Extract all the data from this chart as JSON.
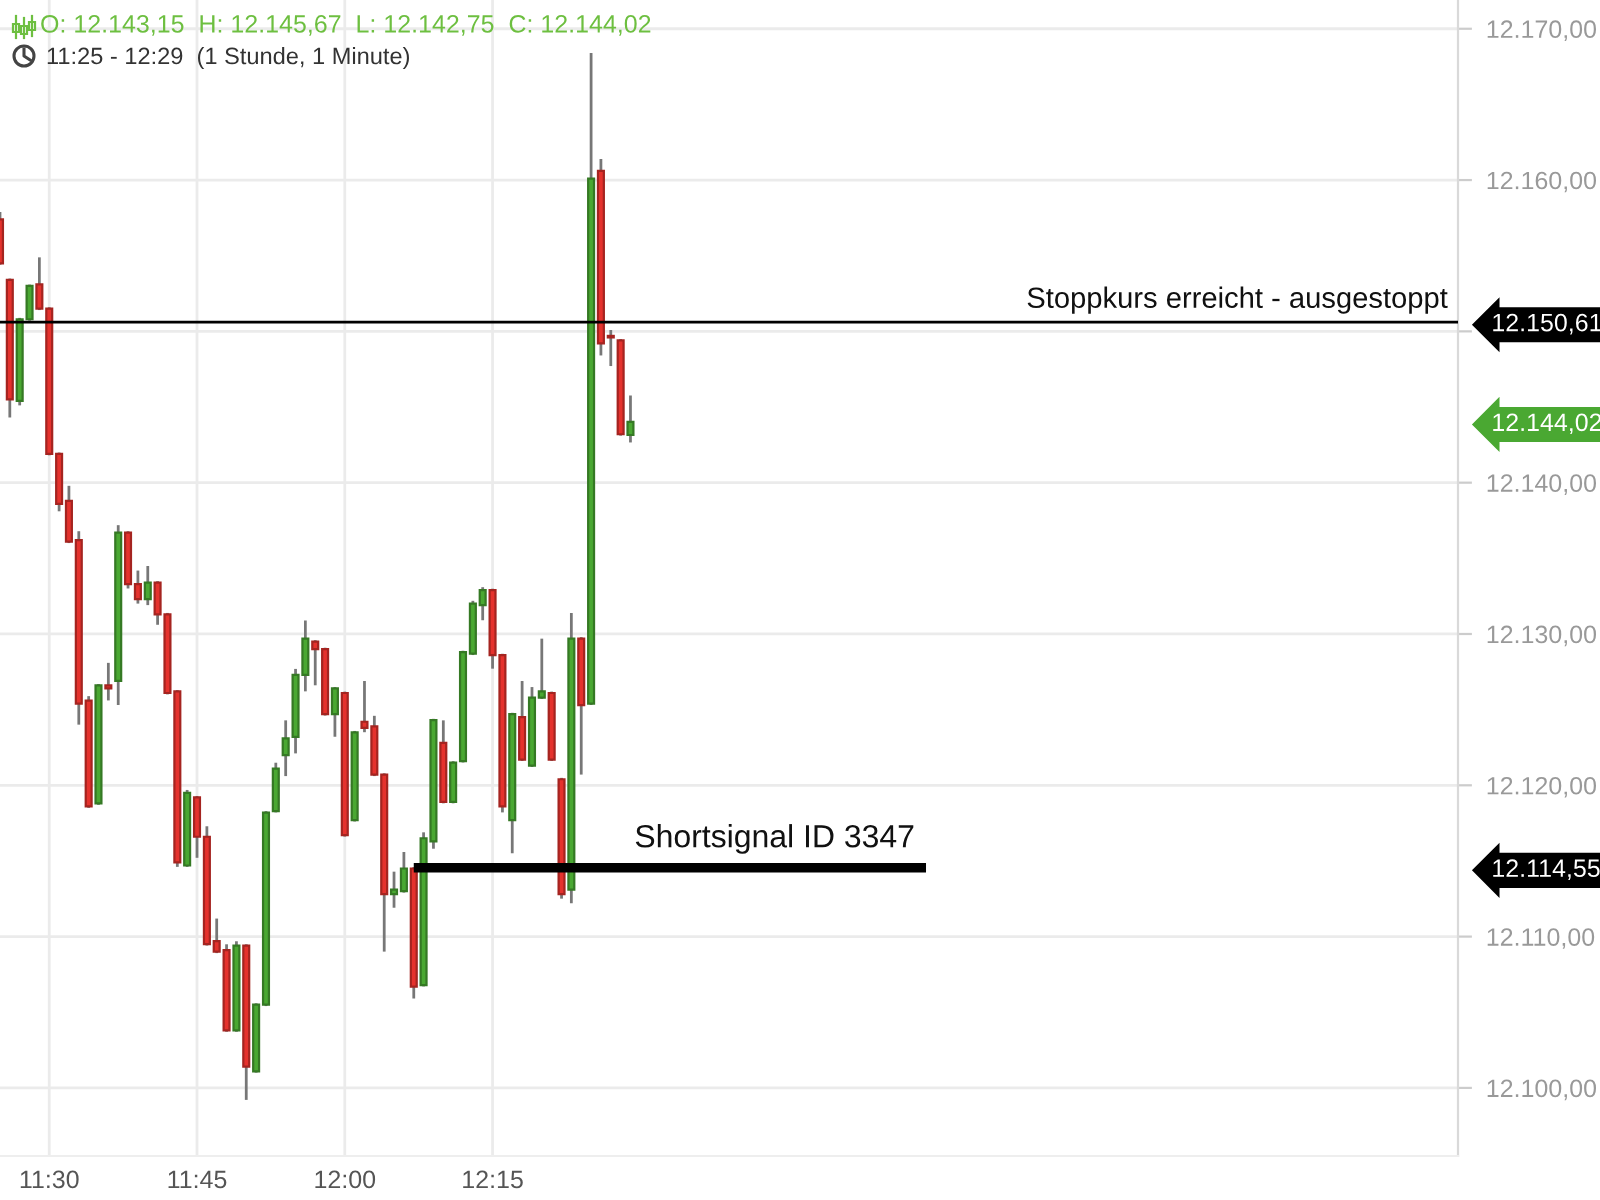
{
  "chart_data": {
    "type": "candlestick",
    "title": "O: 12.143,15  H: 12.145,67  L: 12.142,75  C: 12.144,02",
    "subtitle": "11:25 - 12:29  (1 Stunde, 1 Minute)",
    "x": [
      11.4167,
      11.4333,
      11.45,
      11.4667,
      11.4833,
      11.5,
      11.5167,
      11.5333,
      11.55,
      11.5667,
      11.5833,
      11.6,
      11.6167,
      11.6333,
      11.65,
      11.6667,
      11.6833,
      11.7,
      11.7167,
      11.7333,
      11.75,
      11.7667,
      11.7833,
      11.8,
      11.8167,
      11.8333,
      11.85,
      11.8667,
      11.8833,
      11.9,
      11.9167,
      11.9333,
      11.95,
      11.9667,
      11.9833,
      12.0,
      12.0167,
      12.0333,
      12.05,
      12.0667,
      12.0833,
      12.1,
      12.1167,
      12.1333,
      12.15,
      12.1667,
      12.1833,
      12.2,
      12.2167,
      12.2333,
      12.25,
      12.2667,
      12.2833,
      12.3,
      12.3167,
      12.3333,
      12.35,
      12.3667,
      12.3833,
      12.4,
      12.4167,
      12.4333,
      12.45,
      12.4667,
      12.4833
    ],
    "ohlc": [
      [
        12157.4,
        12157.8,
        12154.5,
        12154.5
      ],
      [
        12153.4,
        12153.4,
        12144.4,
        12145.5
      ],
      [
        12145.4,
        12150.8,
        12145.2,
        12150.8
      ],
      [
        12150.8,
        12153.0,
        12150.8,
        12153.0
      ],
      [
        12153.1,
        12154.8,
        12151.5,
        12151.5
      ],
      [
        12151.5,
        12151.5,
        12141.9,
        12141.9
      ],
      [
        12141.9,
        12141.9,
        12138.2,
        12138.6
      ],
      [
        12138.8,
        12139.7,
        12136.1,
        12136.1
      ],
      [
        12136.2,
        12136.7,
        12124.1,
        12125.4
      ],
      [
        12125.6,
        12125.8,
        12118.6,
        12118.6
      ],
      [
        12118.8,
        12126.6,
        12118.8,
        12126.6
      ],
      [
        12126.6,
        12128.0,
        12125.7,
        12126.4
      ],
      [
        12126.9,
        12137.1,
        12125.4,
        12136.7
      ],
      [
        12136.7,
        12136.7,
        12133.1,
        12133.3
      ],
      [
        12133.3,
        12134.1,
        12132.1,
        12132.3
      ],
      [
        12132.3,
        12134.4,
        12132.0,
        12133.4
      ],
      [
        12133.4,
        12133.4,
        12130.7,
        12131.3
      ],
      [
        12131.3,
        12131.3,
        12126.1,
        12126.1
      ],
      [
        12126.2,
        12126.2,
        12114.7,
        12114.9
      ],
      [
        12114.7,
        12119.6,
        12114.7,
        12119.5
      ],
      [
        12119.2,
        12119.2,
        12115.3,
        12116.6
      ],
      [
        12116.6,
        12117.2,
        12109.5,
        12109.5
      ],
      [
        12109.7,
        12111.1,
        12109.0,
        12109.0
      ],
      [
        12109.1,
        12109.4,
        12103.8,
        12103.8
      ],
      [
        12103.8,
        12109.6,
        12103.8,
        12109.4
      ],
      [
        12109.4,
        12109.4,
        12099.3,
        12101.4
      ],
      [
        12101.1,
        12105.5,
        12101.1,
        12105.5
      ],
      [
        12105.5,
        12118.2,
        12105.5,
        12118.2
      ],
      [
        12118.3,
        12121.4,
        12118.3,
        12121.1
      ],
      [
        12122.0,
        12124.2,
        12120.7,
        12123.1
      ],
      [
        12123.2,
        12127.6,
        12122.2,
        12127.3
      ],
      [
        12127.3,
        12130.8,
        12126.3,
        12129.7
      ],
      [
        12129.5,
        12129.5,
        12126.7,
        12129.0
      ],
      [
        12129.0,
        12129.0,
        12124.7,
        12124.7
      ],
      [
        12124.7,
        12126.4,
        12123.3,
        12126.4
      ],
      [
        12126.1,
        12126.1,
        12116.7,
        12116.7
      ],
      [
        12117.7,
        12123.5,
        12117.7,
        12123.5
      ],
      [
        12124.2,
        12126.8,
        12123.6,
        12123.8
      ],
      [
        12123.9,
        12124.5,
        12120.7,
        12120.7
      ],
      [
        12120.7,
        12120.7,
        12109.1,
        12112.8
      ],
      [
        12112.8,
        12114.2,
        12112.0,
        12113.1
      ],
      [
        12113.0,
        12115.5,
        12113.0,
        12114.5
      ],
      [
        12114.5,
        12114.5,
        12106.0,
        12106.7
      ],
      [
        12106.8,
        12116.8,
        12106.8,
        12116.5
      ],
      [
        12116.3,
        12124.3,
        12115.9,
        12124.3
      ],
      [
        12122.8,
        12124.2,
        12118.9,
        12118.9
      ],
      [
        12118.9,
        12121.5,
        12118.9,
        12121.5
      ],
      [
        12121.6,
        12128.8,
        12121.6,
        12128.8
      ],
      [
        12128.7,
        12132.1,
        12128.7,
        12132.0
      ],
      [
        12131.9,
        12133.0,
        12131.0,
        12132.9
      ],
      [
        12132.9,
        12132.9,
        12127.8,
        12128.6
      ],
      [
        12128.6,
        12128.6,
        12118.3,
        12118.6
      ],
      [
        12117.7,
        12124.7,
        12115.6,
        12124.7
      ],
      [
        12124.5,
        12126.8,
        12121.7,
        12121.7
      ],
      [
        12121.3,
        12126.4,
        12121.3,
        12125.8
      ],
      [
        12125.8,
        12129.6,
        12125.8,
        12126.2
      ],
      [
        12126.1,
        12126.1,
        12121.7,
        12121.7
      ],
      [
        12120.4,
        12120.4,
        12112.6,
        12112.8
      ],
      [
        12113.1,
        12131.3,
        12112.3,
        12129.7
      ],
      [
        12129.7,
        12129.7,
        12120.8,
        12125.3
      ],
      [
        12125.4,
        12168.3,
        12125.4,
        12160.1
      ],
      [
        12160.6,
        12161.3,
        12148.5,
        12149.2
      ],
      [
        12149.7,
        12150.0,
        12147.8,
        12149.6
      ],
      [
        12149.4,
        12149.4,
        12143.2,
        12143.2
      ],
      [
        12143.15,
        12145.67,
        12142.75,
        12144.02
      ]
    ],
    "colors": [
      "#e5322d",
      "#e5322d",
      "#4aa832",
      "#4aa832",
      "#e5322d",
      "#e5322d",
      "#e5322d",
      "#e5322d",
      "#e5322d",
      "#e5322d",
      "#4aa832",
      "#e5322d",
      "#4aa832",
      "#e5322d",
      "#e5322d",
      "#4aa832",
      "#e5322d",
      "#e5322d",
      "#e5322d",
      "#4aa832",
      "#e5322d",
      "#e5322d",
      "#e5322d",
      "#e5322d",
      "#4aa832",
      "#e5322d",
      "#4aa832",
      "#4aa832",
      "#4aa832",
      "#4aa832",
      "#4aa832",
      "#4aa832",
      "#e5322d",
      "#e5322d",
      "#4aa832",
      "#e5322d",
      "#4aa832",
      "#e5322d",
      "#e5322d",
      "#e5322d",
      "#4aa832",
      "#4aa832",
      "#e5322d",
      "#4aa832",
      "#4aa832",
      "#e5322d",
      "#4aa832",
      "#4aa832",
      "#4aa832",
      "#4aa832",
      "#e5322d",
      "#e5322d",
      "#4aa832",
      "#e5322d",
      "#4aa832",
      "#4aa832",
      "#e5322d",
      "#e5322d",
      "#4aa832",
      "#e5322d",
      "#4aa832",
      "#e5322d",
      "#e5322d",
      "#e5322d",
      "#4aa832"
    ],
    "series": [
      {
        "type": "line",
        "name": "Shortsignal ID 3347",
        "color": "#000000",
        "x": [
          12.1167,
          12.9833
        ],
        "values": [
          12114.55,
          12114.55
        ]
      }
    ],
    "ref_lines": [
      {
        "axis": "y",
        "value": 12150.61,
        "label": "Stoppkurs erreicht - ausgestoppt",
        "color": "#000000"
      }
    ],
    "xlim": [
      11.4167,
      13.8833
    ],
    "xticks": [
      {
        "value": 11.5,
        "label": "11:30"
      },
      {
        "value": 11.75,
        "label": "11:45"
      },
      {
        "value": 12.0,
        "label": "12:00"
      },
      {
        "value": 12.25,
        "label": "12:15"
      }
    ],
    "ylim": [
      12095.5,
      12171.9
    ],
    "yticks": [
      {
        "value": 12100,
        "label": "12.100,00"
      },
      {
        "value": 12110,
        "label": "12.110,00"
      },
      {
        "value": 12120,
        "label": "12.120,00"
      },
      {
        "value": 12130,
        "label": "12.130,00"
      },
      {
        "value": 12140,
        "label": "12.140,00"
      },
      {
        "value": 12150,
        "label": null
      },
      {
        "value": 12160,
        "label": "12.160,00"
      },
      {
        "value": 12170,
        "label": "12.170,00"
      },
      {
        "value": 12150.61,
        "label": "12.150,61"
      },
      {
        "value": 12144.02,
        "label": "12.144,02"
      },
      {
        "value": 12114.55,
        "label": "12.114,55"
      }
    ],
    "grid": true
  }
}
